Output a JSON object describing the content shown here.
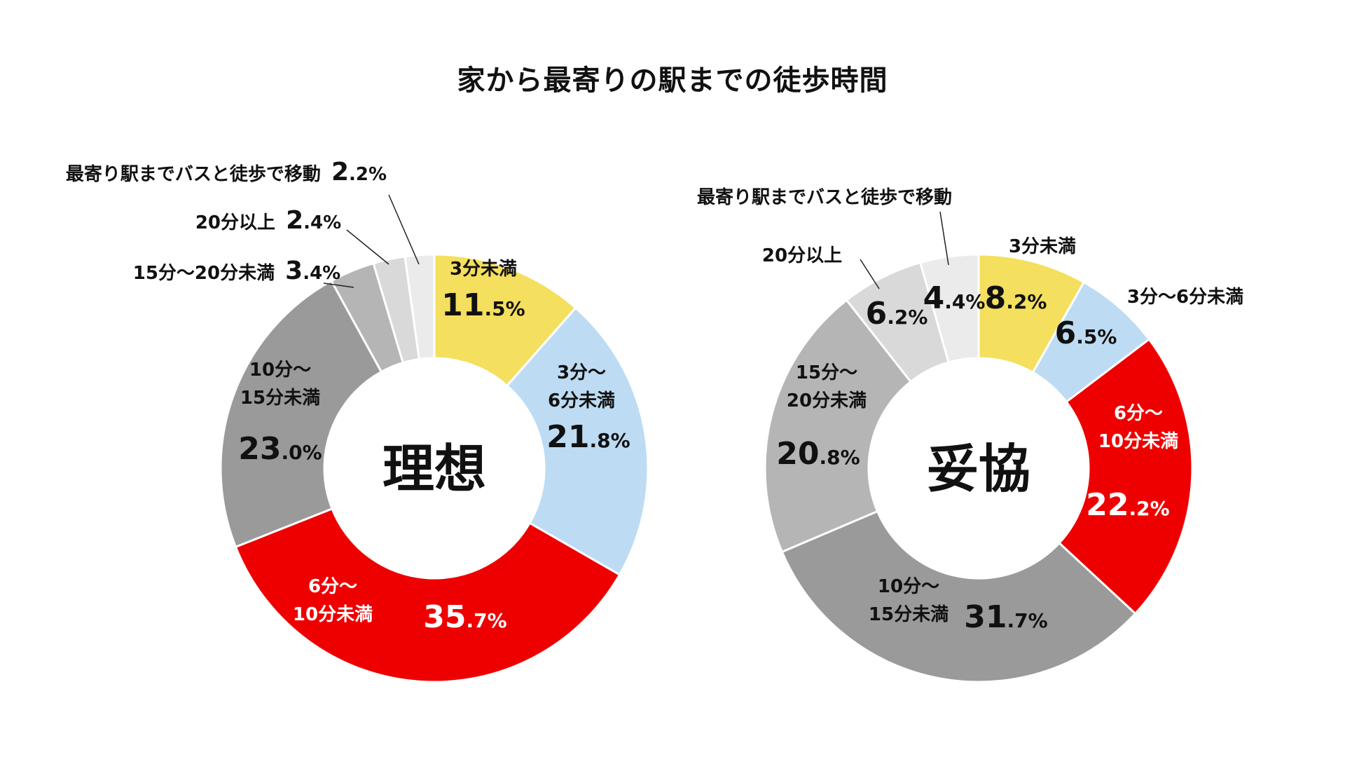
{
  "title": "家から最寄りの駅までの徒歩時間",
  "colors": {
    "yellow": "#f4df5e",
    "lightblue": "#bddcf3",
    "red": "#ee0000",
    "darkgray": "#9a9a9a",
    "midgray": "#b5b5b5",
    "lightgray": "#d9d9d9",
    "palegray": "#ebebeb",
    "text": "#111111",
    "white": "#ffffff"
  },
  "chart_data": [
    {
      "type": "pie",
      "center_label": "理想",
      "categories": [
        "3分未満",
        "3分〜6分未満",
        "6分〜10分未満",
        "10分〜15分未満",
        "15分〜20分未満",
        "20分以上",
        "最寄り駅までバスと徒歩で移動"
      ],
      "values": [
        11.5,
        21.8,
        35.7,
        23.0,
        3.4,
        2.4,
        2.2
      ],
      "unit": "%",
      "slice_colors": [
        "yellow",
        "lightblue",
        "red",
        "darkgray",
        "midgray",
        "lightgray",
        "palegray"
      ],
      "labels": [
        {
          "lines": [
            "3分未満"
          ],
          "int": "11",
          "dec": ".5%"
        },
        {
          "lines": [
            "3分〜",
            "6分未満"
          ],
          "int": "21",
          "dec": ".8%"
        },
        {
          "lines": [
            "6分〜",
            "10分未満"
          ],
          "int": "35",
          "dec": ".7%"
        },
        {
          "lines": [
            "10分〜",
            "15分未満"
          ],
          "int": "23",
          "dec": ".0%"
        },
        {
          "lines": [
            "15分〜20分未満"
          ],
          "int": "3",
          "dec": ".4%"
        },
        {
          "lines": [
            "20分以上"
          ],
          "int": "2",
          "dec": ".4%"
        },
        {
          "lines": [
            "最寄り駅までバスと徒歩で移動"
          ],
          "int": "2",
          "dec": ".2%"
        }
      ]
    },
    {
      "type": "pie",
      "center_label": "妥協",
      "categories": [
        "3分未満",
        "3分〜6分未満",
        "6分〜10分未満",
        "10分〜15分未満",
        "15分〜20分未満",
        "20分以上",
        "最寄り駅までバスと徒歩で移動"
      ],
      "values": [
        8.2,
        6.5,
        22.2,
        31.7,
        20.8,
        6.2,
        4.4
      ],
      "unit": "%",
      "slice_colors": [
        "yellow",
        "lightblue",
        "red",
        "darkgray",
        "midgray",
        "lightgray",
        "palegray"
      ],
      "labels": [
        {
          "lines": [
            "3分未満"
          ],
          "int": "8",
          "dec": ".2%"
        },
        {
          "lines": [
            "3分〜6分未満"
          ],
          "int": "6",
          "dec": ".5%"
        },
        {
          "lines": [
            "6分〜",
            "10分未満"
          ],
          "int": "22",
          "dec": ".2%"
        },
        {
          "lines": [
            "10分〜",
            "15分未満"
          ],
          "int": "31",
          "dec": ".7%"
        },
        {
          "lines": [
            "15分〜",
            "20分未満"
          ],
          "int": "20",
          "dec": ".8%"
        },
        {
          "lines": [
            "20分以上"
          ],
          "int": "6",
          "dec": ".2%"
        },
        {
          "lines": [
            "最寄り駅までバスと徒歩で移動"
          ],
          "int": "4",
          "dec": ".4%"
        }
      ]
    }
  ]
}
